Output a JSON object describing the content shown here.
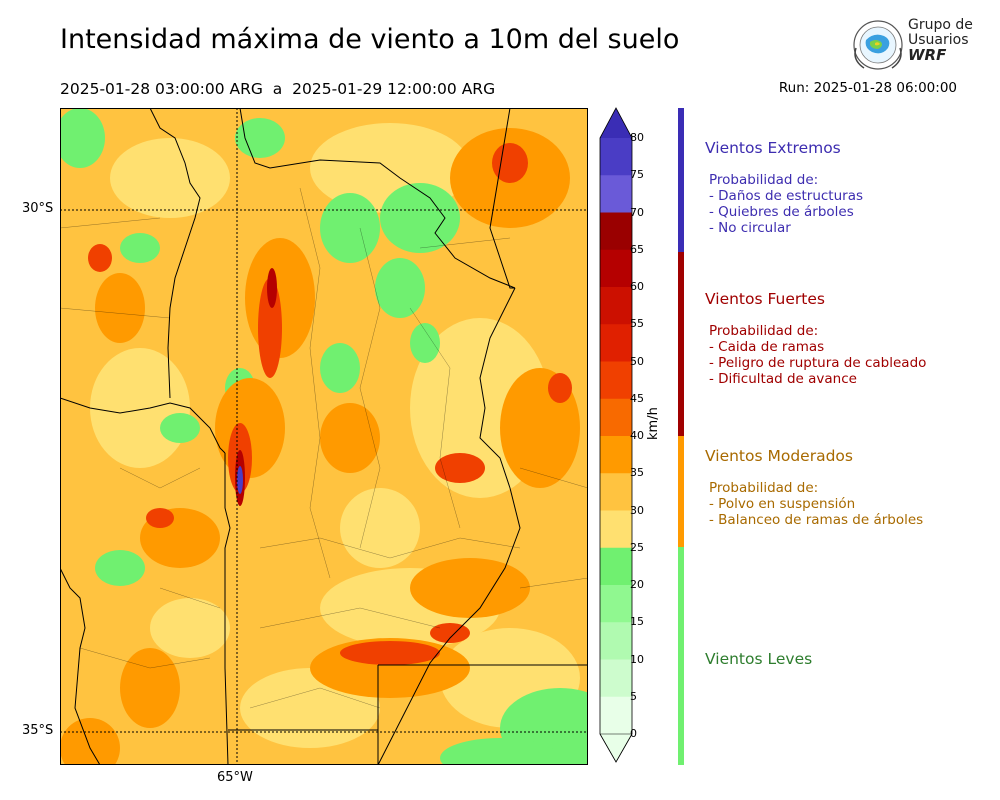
{
  "title": "Intensidad máxima de viento a 10m del suelo",
  "period": {
    "start": "2025-01-28 03:00:00 ARG",
    "sep": "a",
    "end": "2025-01-29 12:00:00 ARG"
  },
  "run": "Run: 2025-01-28 06:00:00",
  "logo": {
    "line1": "Grupo de",
    "line2": "Usuarios",
    "line3": "WRF"
  },
  "axes": {
    "lat_top": "30°S",
    "lat_bottom": "35°S",
    "lon": "65°W"
  },
  "colorbar": {
    "unit": "km/h",
    "ticks": [
      "80",
      "75",
      "70",
      "65",
      "60",
      "55",
      "50",
      "45",
      "40",
      "35",
      "30",
      "25",
      "20",
      "15",
      "10",
      "5",
      "0"
    ],
    "colors": [
      "#3a2db5",
      "#4a3dc5",
      "#6a5ad8",
      "#9a0000",
      "#b50000",
      "#cc1000",
      "#e02000",
      "#f04000",
      "#f86a00",
      "#ff9a00",
      "#ffc340",
      "#ffe070",
      "#70f070",
      "#90f890",
      "#b0fab0",
      "#cdfccd",
      "#e8ffe8"
    ]
  },
  "categories": [
    {
      "name": "Vientos Extremos",
      "color": "#3d2db0",
      "bar": "#3a2db5",
      "heading": "Probabilidad de:",
      "items": [
        "- Daños de estructuras",
        "- Quiebres de árboles",
        "- No circular"
      ]
    },
    {
      "name": "Vientos Fuertes",
      "color": "#a00000",
      "bar": "#a00000",
      "heading": "Probabilidad de:",
      "items": [
        "- Caida de ramas",
        "- Peligro de ruptura de cableado",
        "- Dificultad de avance"
      ]
    },
    {
      "name": "Vientos Moderados",
      "color": "#a86a00",
      "bar": "#ff9a00",
      "heading": "Probabilidad de:",
      "items": [
        "- Polvo en suspensión",
        "- Balanceo de ramas de árboles"
      ]
    },
    {
      "name": "Vientos Leves",
      "color": "#2e7d2e",
      "bar": "#70f070"
    }
  ]
}
